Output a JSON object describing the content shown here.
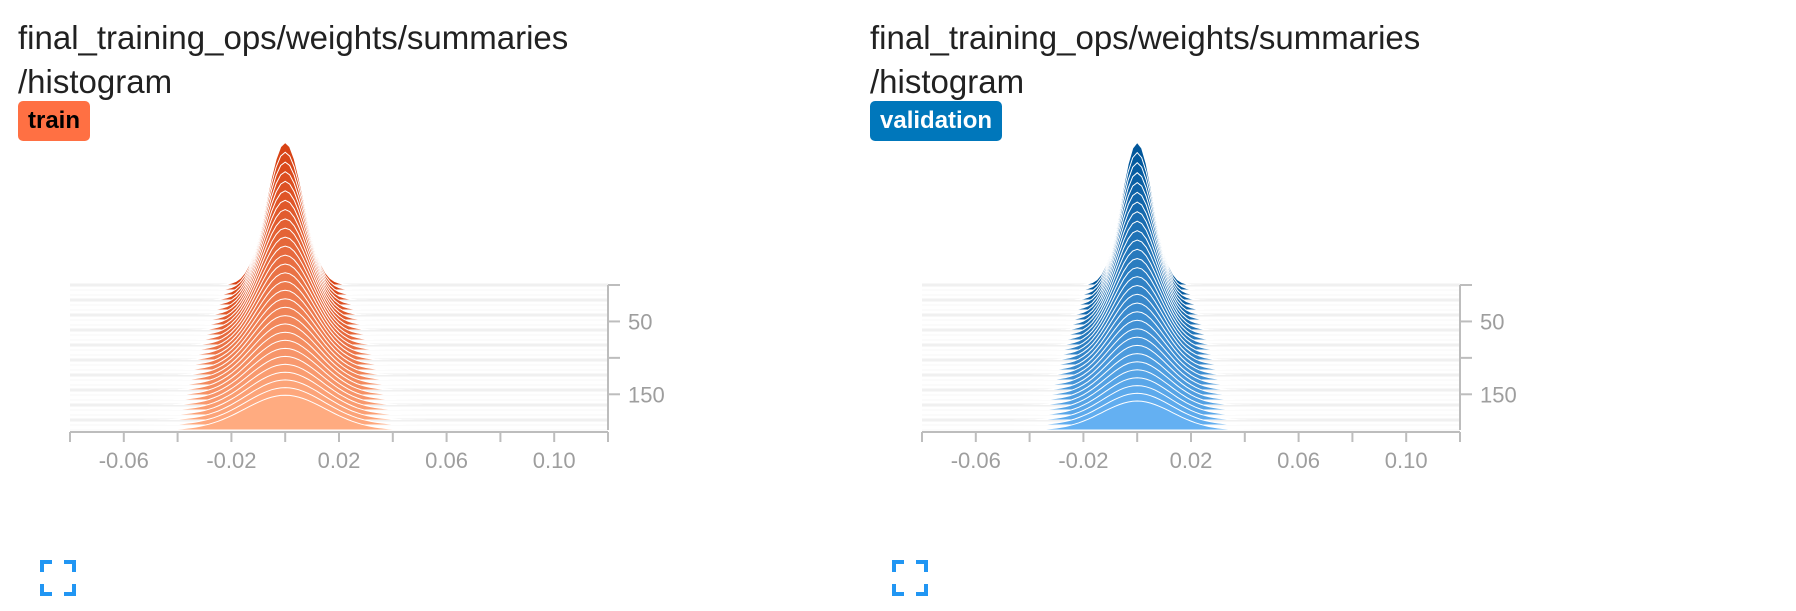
{
  "cards": [
    {
      "id": "train",
      "title_line1": "final_training_ops/weights/summaries",
      "title_line2": "/histogram",
      "run_label": "train",
      "badge_color": "#ff7043",
      "badge_text_color": "#000000",
      "fill_light": "#ffab80",
      "fill_dark": "#d84315",
      "stroke_color": "#ffffff",
      "expand_icon": "fullscreen-icon",
      "chart_data": {
        "type": "histogram",
        "mode": "offset",
        "xlim": [
          -0.08,
          0.12
        ],
        "xticks": [
          "-0.06",
          "-0.02",
          "0.02",
          "0.06",
          "0.10"
        ],
        "xtick_values": [
          -0.06,
          -0.02,
          0.02,
          0.06,
          0.1
        ],
        "yticks": [
          "50",
          "150"
        ],
        "ytick_values": [
          50,
          150
        ],
        "step_range": [
          0,
          199
        ],
        "center": 0.0,
        "final_std": 0.015,
        "final_peak_height": 0.75,
        "last_step_peak_height": 0.3,
        "grid_color": "#e0e0e0"
      }
    },
    {
      "id": "validation",
      "title_line1": "final_training_ops/weights/summaries",
      "title_line2": "/histogram",
      "run_label": "validation",
      "badge_color": "#0077bb",
      "badge_text_color": "#ffffff",
      "fill_light": "#64b0f2",
      "fill_dark": "#01579b",
      "stroke_color": "#ffffff",
      "expand_icon": "fullscreen-icon",
      "chart_data": {
        "type": "histogram",
        "mode": "offset",
        "xlim": [
          -0.08,
          0.12
        ],
        "xticks": [
          "-0.06",
          "-0.02",
          "0.02",
          "0.06",
          "0.10"
        ],
        "xtick_values": [
          -0.06,
          -0.02,
          0.02,
          0.06,
          0.1
        ],
        "yticks": [
          "50",
          "150"
        ],
        "ytick_values": [
          50,
          150
        ],
        "step_range": [
          0,
          199
        ],
        "center": 0.0,
        "final_std": 0.013,
        "final_peak_height": 0.75,
        "last_step_peak_height": 0.25,
        "grid_color": "#e0e0e0"
      }
    }
  ]
}
